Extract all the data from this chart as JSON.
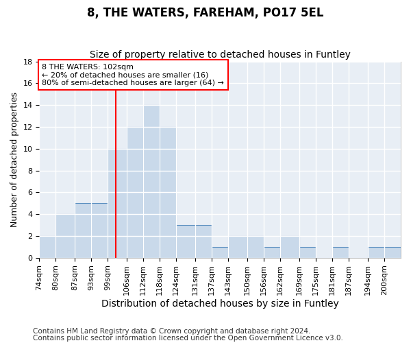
{
  "title": "8, THE WATERS, FAREHAM, PO17 5EL",
  "subtitle": "Size of property relative to detached houses in Funtley",
  "xlabel": "Distribution of detached houses by size in Funtley",
  "ylabel": "Number of detached properties",
  "footnote1": "Contains HM Land Registry data © Crown copyright and database right 2024.",
  "footnote2": "Contains public sector information licensed under the Open Government Licence v3.0.",
  "categories": [
    "74sqm",
    "80sqm",
    "87sqm",
    "93sqm",
    "99sqm",
    "106sqm",
    "112sqm",
    "118sqm",
    "124sqm",
    "131sqm",
    "137sqm",
    "143sqm",
    "150sqm",
    "156sqm",
    "162sqm",
    "169sqm",
    "175sqm",
    "181sqm",
    "187sqm",
    "194sqm",
    "200sqm"
  ],
  "bin_edges": [
    74,
    80,
    87,
    93,
    99,
    106,
    112,
    118,
    124,
    131,
    137,
    143,
    150,
    156,
    162,
    169,
    175,
    181,
    187,
    194,
    200,
    206
  ],
  "values": [
    2,
    4,
    5,
    5,
    10,
    12,
    14,
    12,
    3,
    3,
    1,
    2,
    2,
    1,
    2,
    1,
    0,
    1,
    0,
    1,
    1
  ],
  "bar_color": "#c9d9ea",
  "bar_edge_color": "#5a8fc0",
  "red_line_x": 102,
  "annotation_line1": "8 THE WATERS: 102sqm",
  "annotation_line2": "← 20% of detached houses are smaller (16)",
  "annotation_line3": "80% of semi-detached houses are larger (64) →",
  "ylim": [
    0,
    18
  ],
  "yticks": [
    0,
    2,
    4,
    6,
    8,
    10,
    12,
    14,
    16,
    18
  ],
  "fig_background": "#ffffff",
  "plot_background": "#e8eef5",
  "grid_color": "#ffffff",
  "title_fontsize": 12,
  "subtitle_fontsize": 10,
  "footnote_fontsize": 7.5,
  "xlabel_fontsize": 10,
  "ylabel_fontsize": 9,
  "tick_fontsize": 8
}
